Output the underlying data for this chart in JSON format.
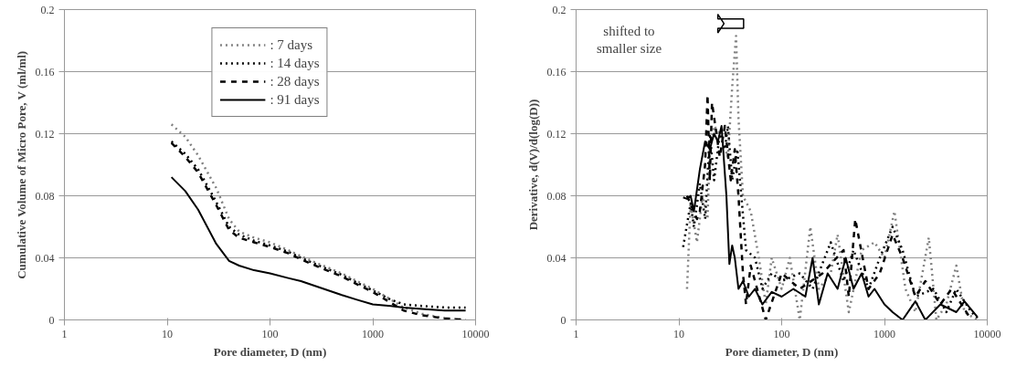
{
  "chart_data": [
    {
      "type": "line",
      "xlabel": "Pore diameter, D (nm)",
      "ylabel": "Cumulative Volume of Micro Pore, V (ml/ml)",
      "log": "x",
      "xlim": [
        1,
        10000
      ],
      "xticks": [
        1,
        10,
        100,
        1000,
        10000
      ],
      "ylim": [
        0,
        0.2
      ],
      "yticks": [
        0,
        0.04,
        0.08,
        0.12,
        0.16,
        0.2
      ],
      "grid": "y",
      "legend": "top",
      "x": [
        11,
        15,
        20,
        30,
        40,
        50,
        70,
        100,
        150,
        200,
        300,
        500,
        700,
        1000,
        1500,
        2000,
        3000,
        5000,
        8000
      ],
      "series": [
        {
          "name": ": 7 days",
          "color": "#808080",
          "line_style": "dotted",
          "values": [
            0.126,
            0.118,
            0.106,
            0.085,
            0.065,
            0.057,
            0.053,
            0.05,
            0.045,
            0.041,
            0.036,
            0.03,
            0.025,
            0.02,
            0.013,
            0.008,
            0.004,
            0.001,
            0.0
          ]
        },
        {
          "name": ": 14 days",
          "color": "#000000",
          "line_style": "dotted",
          "values": [
            0.115,
            0.107,
            0.097,
            0.076,
            0.06,
            0.055,
            0.051,
            0.048,
            0.044,
            0.04,
            0.035,
            0.029,
            0.024,
            0.019,
            0.013,
            0.01,
            0.009,
            0.008,
            0.008
          ]
        },
        {
          "name": ": 28 days",
          "color": "#000000",
          "line_style": "dashed",
          "values": [
            0.114,
            0.105,
            0.095,
            0.074,
            0.058,
            0.053,
            0.05,
            0.047,
            0.043,
            0.039,
            0.034,
            0.028,
            0.023,
            0.018,
            0.011,
            0.006,
            0.003,
            0.001,
            0.0
          ]
        },
        {
          "name": ": 91 days",
          "color": "#000000",
          "line_style": "solid",
          "values": [
            0.092,
            0.083,
            0.071,
            0.049,
            0.038,
            0.035,
            0.032,
            0.03,
            0.027,
            0.025,
            0.021,
            0.016,
            0.013,
            0.01,
            0.009,
            0.008,
            0.007,
            0.006,
            0.006
          ]
        }
      ]
    },
    {
      "type": "line",
      "xlabel": "Pore diameter, D (nm)",
      "ylabel": "Derivative, d(V)/d(log(D))",
      "log": "x",
      "xlim": [
        1,
        10000
      ],
      "xticks": [
        1,
        10,
        100,
        1000,
        10000
      ],
      "ylim": [
        0,
        0.2
      ],
      "yticks": [
        0,
        0.04,
        0.08,
        0.12,
        0.16,
        0.2
      ],
      "grid": "y",
      "annotations": [
        "shifted to smaller size"
      ],
      "series": [
        {
          "color": "#808080",
          "line_style": "dotted",
          "x": [
            12,
            13,
            15,
            17,
            19,
            20,
            22,
            25,
            30,
            33,
            36,
            38,
            42,
            50,
            60,
            70,
            80,
            100,
            120,
            150,
            190,
            230,
            300,
            350,
            450,
            600,
            800,
            1000,
            1250,
            1600,
            2000,
            2700,
            3200,
            4000,
            5000,
            6000,
            8000
          ],
          "values": [
            0.02,
            0.075,
            0.05,
            0.08,
            0.065,
            0.11,
            0.125,
            0.12,
            0.105,
            0.15,
            0.183,
            0.13,
            0.08,
            0.07,
            0.04,
            0.01,
            0.04,
            0.02,
            0.04,
            0.0,
            0.06,
            0.02,
            0.03,
            0.055,
            0.005,
            0.045,
            0.05,
            0.04,
            0.07,
            0.02,
            0.005,
            0.053,
            0.0,
            0.01,
            0.035,
            0.005,
            0.0
          ]
        },
        {
          "color": "#000000",
          "line_style": "dotted",
          "x": [
            11,
            13,
            14,
            16,
            18,
            20,
            22,
            25,
            28,
            30,
            33,
            37,
            45,
            55,
            65,
            80,
            100,
            150,
            200,
            300,
            400,
            500,
            700,
            900,
            1200,
            1500,
            2000,
            3000,
            4000,
            5000,
            7000,
            8500
          ],
          "values": [
            0.047,
            0.075,
            0.06,
            0.088,
            0.065,
            0.12,
            0.09,
            0.12,
            0.11,
            0.125,
            0.09,
            0.11,
            0.045,
            0.04,
            0.02,
            0.03,
            0.025,
            0.03,
            0.02,
            0.05,
            0.025,
            0.045,
            0.02,
            0.04,
            0.06,
            0.045,
            0.015,
            0.02,
            0.005,
            0.02,
            0.005,
            0.0
          ]
        },
        {
          "color": "#000000",
          "line_style": "dashed",
          "x": [
            12,
            15,
            16,
            18,
            19,
            20,
            21,
            25,
            28,
            32,
            35,
            38,
            42,
            45,
            50,
            70,
            100,
            150,
            250,
            400,
            450,
            520,
            700,
            900,
            1200,
            1500,
            2000,
            2500,
            3500,
            4500,
            7000
          ],
          "values": [
            0.08,
            0.065,
            0.07,
            0.1,
            0.145,
            0.09,
            0.14,
            0.105,
            0.125,
            0.09,
            0.11,
            0.08,
            0.03,
            0.01,
            0.035,
            0.0,
            0.03,
            0.02,
            0.03,
            0.045,
            0.015,
            0.065,
            0.02,
            0.03,
            0.055,
            0.04,
            0.015,
            0.025,
            0.01,
            0.02,
            0.0
          ]
        },
        {
          "color": "#000000",
          "line_style": "solid",
          "x": [
            11,
            12,
            13,
            14,
            16,
            18,
            20,
            22,
            24,
            26,
            29,
            31,
            33,
            35,
            38,
            42,
            48,
            55,
            65,
            80,
            100,
            130,
            170,
            200,
            230,
            280,
            350,
            420,
            500,
            600,
            700,
            800,
            1000,
            1200,
            1500,
            2000,
            2500,
            3500,
            5000,
            6000,
            8000
          ],
          "values": [
            0.079,
            0.078,
            0.08,
            0.07,
            0.097,
            0.115,
            0.11,
            0.12,
            0.115,
            0.125,
            0.08,
            0.036,
            0.048,
            0.04,
            0.02,
            0.025,
            0.015,
            0.02,
            0.01,
            0.018,
            0.015,
            0.02,
            0.015,
            0.04,
            0.01,
            0.03,
            0.02,
            0.04,
            0.02,
            0.03,
            0.015,
            0.02,
            0.01,
            0.005,
            0.0,
            0.012,
            0.0,
            0.01,
            0.005,
            0.012,
            0.002
          ]
        }
      ]
    }
  ]
}
